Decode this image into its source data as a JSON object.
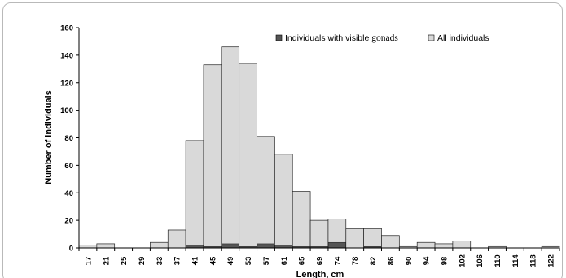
{
  "chart_data": {
    "type": "bar",
    "stacked_overlay": true,
    "categories": [
      "17",
      "21",
      "25",
      "29",
      "33",
      "37",
      "41",
      "45",
      "49",
      "53",
      "57",
      "61",
      "65",
      "69",
      "74",
      "78",
      "82",
      "86",
      "90",
      "94",
      "98",
      "102",
      "106",
      "110",
      "114",
      "118",
      "122"
    ],
    "series": [
      {
        "name_prefix": "Individuals with visible ",
        "name_suffix": "gonads",
        "color": "#555555",
        "values": [
          0,
          0,
          0,
          0,
          0,
          0,
          2,
          1,
          3,
          1,
          3,
          2,
          1,
          1,
          4,
          0,
          1,
          0,
          0,
          0,
          0,
          0,
          0,
          0,
          0,
          0,
          0
        ]
      },
      {
        "name": "All individuals",
        "color": "#d9d9d9",
        "values": [
          2,
          3,
          0,
          0,
          4,
          13,
          78,
          133,
          146,
          134,
          81,
          68,
          41,
          20,
          21,
          14,
          14,
          9,
          1,
          4,
          3,
          5,
          0,
          1,
          0,
          0,
          1
        ]
      }
    ],
    "xlabel": "Length, cm",
    "ylabel": "Number of individuals",
    "ylim": [
      0,
      160
    ],
    "yticks": [
      0,
      20,
      40,
      60,
      80,
      100,
      120,
      140,
      160
    ],
    "grid": false,
    "legend_position": "top-right"
  }
}
